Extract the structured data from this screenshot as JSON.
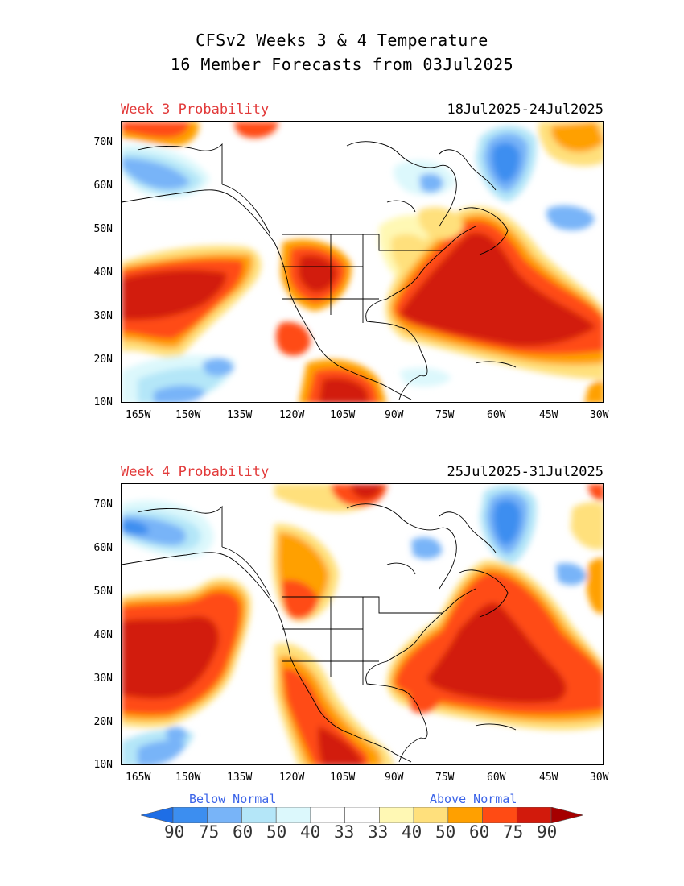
{
  "title": {
    "line1": "CFSv2 Weeks 3 & 4 Temperature",
    "line2": "16 Member Forecasts from 03Jul2025"
  },
  "panels": [
    {
      "label": "Week 3 Probability",
      "dates": "18Jul2025-24Jul2025"
    },
    {
      "label": "Week 4 Probability",
      "dates": "25Jul2025-31Jul2025"
    }
  ],
  "axes": {
    "lat_labels": [
      "70N",
      "60N",
      "50N",
      "40N",
      "30N",
      "20N",
      "10N"
    ],
    "lon_labels": [
      "165W",
      "150W",
      "135W",
      "120W",
      "105W",
      "90W",
      "75W",
      "60W",
      "45W",
      "30W"
    ]
  },
  "legend": {
    "below_label": "Below Normal",
    "above_label": "Above Normal",
    "values": [
      "90",
      "75",
      "60",
      "50",
      "40",
      "33",
      "33",
      "40",
      "50",
      "60",
      "75",
      "90"
    ],
    "colors": [
      "#1e6ee6",
      "#3c8ef0",
      "#78b4f8",
      "#b4e6f8",
      "#dcf8fc",
      "#ffffff",
      "#ffffff",
      "#fff8b4",
      "#ffe07c",
      "#ffa000",
      "#ff4b14",
      "#d21a0c",
      "#a50000"
    ]
  }
}
